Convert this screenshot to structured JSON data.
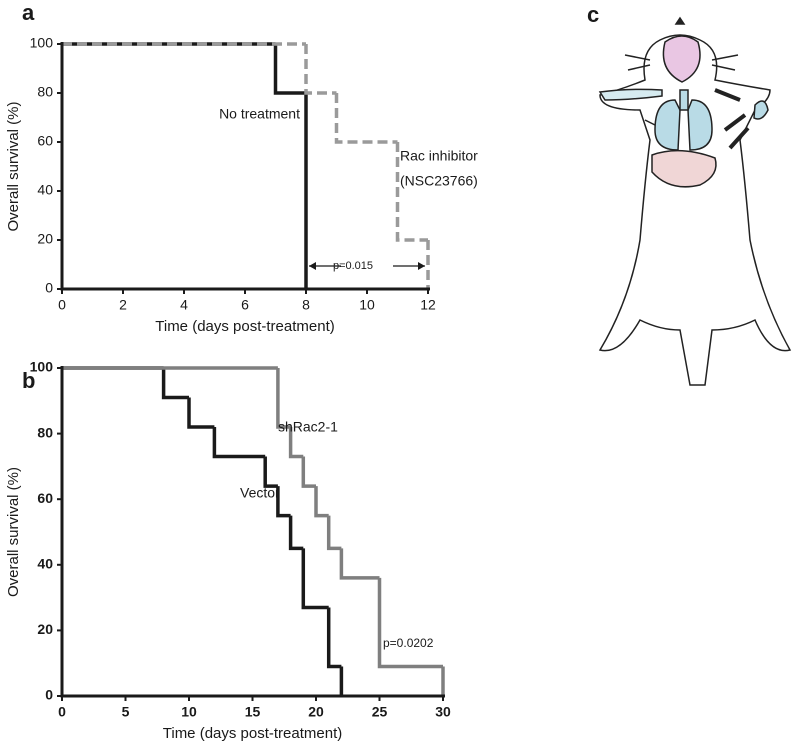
{
  "chart_data": [
    {
      "type": "step",
      "panel": "a",
      "xlabel": "Time (days post-treatment)",
      "ylabel": "Overall survival (%)",
      "xlim": [
        0,
        12
      ],
      "xticks": [
        0,
        2,
        4,
        6,
        8,
        10,
        12
      ],
      "ylim": [
        0,
        100
      ],
      "yticks": [
        0,
        20,
        40,
        60,
        80,
        100
      ],
      "series": [
        {
          "name": "No treatment",
          "color": "#1a1a1a",
          "dashed": false,
          "x": [
            0,
            7,
            8
          ],
          "values": [
            100,
            80,
            0
          ]
        },
        {
          "name": "Rac inhibitor",
          "color": "#9a9a9a",
          "dashed": true,
          "x": [
            0,
            8,
            9,
            11,
            12
          ],
          "values": [
            100,
            80,
            60,
            20,
            0
          ]
        }
      ],
      "annotations": [
        "(NSC23766)",
        "p=0.015"
      ]
    },
    {
      "type": "step",
      "panel": "b",
      "xlabel": "Time (days post-treatment)",
      "ylabel": "Overall survival (%)",
      "xlim": [
        0,
        30
      ],
      "xticks": [
        0,
        5,
        10,
        15,
        20,
        25,
        30
      ],
      "ylim": [
        0,
        100
      ],
      "yticks": [
        0,
        20,
        40,
        60,
        80,
        100
      ],
      "series": [
        {
          "name": "Vector",
          "color": "#1a1a1a",
          "dashed": false,
          "x": [
            0,
            8,
            10,
            12,
            16,
            17,
            18,
            19,
            21,
            22
          ],
          "values": [
            100,
            91,
            82,
            73,
            64,
            55,
            45,
            27,
            9,
            0
          ]
        },
        {
          "name": "shRac2-1",
          "color": "#7f7f7f",
          "dashed": false,
          "x": [
            0,
            17,
            18,
            19,
            20,
            21,
            22,
            25,
            30
          ],
          "values": [
            100,
            82,
            73,
            64,
            55,
            45,
            36,
            9,
            0
          ]
        }
      ],
      "annotations": [
        "p=0.0202"
      ]
    }
  ],
  "illustration": {
    "panel": "c"
  }
}
